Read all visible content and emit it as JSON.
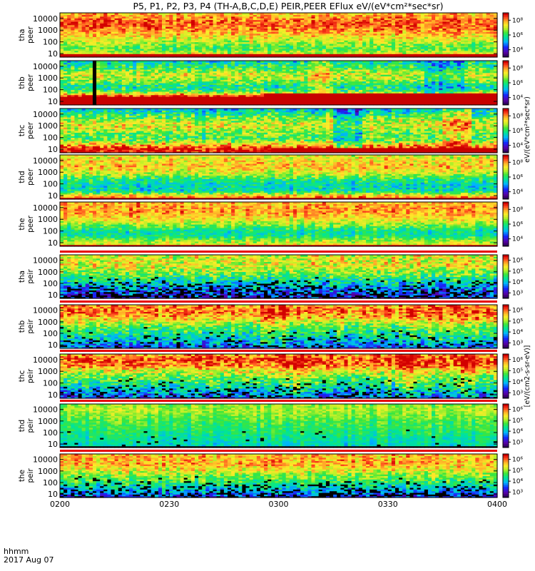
{
  "chart_data": {
    "type": "heatmap",
    "title": "P5, P1, P2, P3, P4 (TH-A,B,C,D,E) PEIR,PEER EFlux eV/(eV*cm²*sec*sr)",
    "x_axis": {
      "ticks": [
        "0200",
        "0230",
        "0300",
        "0330",
        "0400"
      ],
      "ticks_min": [
        0,
        30,
        60,
        90,
        120
      ],
      "range_min": [
        0,
        120
      ],
      "label_line1": "hhmm",
      "label_line2": "2017 Aug 07"
    },
    "y_axis": {
      "scale": "log",
      "range": [
        5,
        30000
      ],
      "ticks": [
        "10",
        "100",
        "1000",
        "10000"
      ]
    },
    "colorbar": {
      "scale": "log",
      "ticks_peer": [
        "10⁴",
        "10⁶",
        "10⁸"
      ],
      "ticks_peir": [
        "10³",
        "10⁴",
        "10⁵",
        "10⁶"
      ],
      "label_peer": "eV/(eV*cm²*sec*sr)",
      "label_peir": "[eV/(cm2-s-sr-eV)]"
    },
    "panels": [
      {
        "probe": "tha",
        "species": "peer",
        "label_line1": "tha",
        "label_line2": "peer",
        "low_cutoff_log": 0.95,
        "profile": [
          [
            0.6,
            0.78
          ],
          [
            1.1,
            0.68
          ],
          [
            1.45,
            0.55
          ],
          [
            1.75,
            0.6
          ],
          [
            2.3,
            0.72
          ],
          [
            3.0,
            0.85
          ],
          [
            3.6,
            0.92
          ],
          [
            4.4,
            0.8
          ]
        ],
        "variability": 0.22,
        "events": []
      },
      {
        "probe": "thb",
        "species": "peer",
        "label_line1": "thb",
        "label_line2": "peer",
        "low_cutoff_log": 1.4,
        "low_cutoff_late": 1.75,
        "late_from_min": 56,
        "profile": [
          [
            0.6,
            1.0
          ],
          [
            1.0,
            1.0
          ],
          [
            1.5,
            0.95
          ],
          [
            1.9,
            0.55
          ],
          [
            2.3,
            0.45
          ],
          [
            2.9,
            0.65
          ],
          [
            3.4,
            0.7
          ],
          [
            3.8,
            0.55
          ],
          [
            4.4,
            0.45
          ]
        ],
        "variability": 0.28,
        "gap_min": [
          8.5,
          9.5
        ],
        "events": [
          [
            68,
            74,
            0.12
          ],
          [
            100,
            110,
            -0.15
          ]
        ]
      },
      {
        "probe": "thc",
        "species": "peer",
        "label_line1": "thc",
        "label_line2": "peer",
        "low_cutoff_log": 0.75,
        "low_cutoff_late": 1.1,
        "late_from_min": 58,
        "profile": [
          [
            0.6,
            1.0
          ],
          [
            1.0,
            1.0
          ],
          [
            1.4,
            0.8
          ],
          [
            1.9,
            0.55
          ],
          [
            2.4,
            0.6
          ],
          [
            3.0,
            0.72
          ],
          [
            3.5,
            0.65
          ],
          [
            4.4,
            0.4
          ]
        ],
        "variability": 0.3,
        "events": [
          [
            75,
            82,
            -0.2
          ],
          [
            105,
            112,
            0.15
          ]
        ]
      },
      {
        "probe": "thd",
        "species": "peer",
        "label_line1": "thd",
        "label_line2": "peer",
        "low_cutoff_log": 0.85,
        "profile": [
          [
            0.6,
            0.92
          ],
          [
            1.0,
            0.82
          ],
          [
            1.4,
            0.45
          ],
          [
            1.9,
            0.42
          ],
          [
            2.4,
            0.5
          ],
          [
            2.9,
            0.68
          ],
          [
            3.5,
            0.8
          ],
          [
            4.4,
            0.72
          ]
        ],
        "variability": 0.24,
        "events": []
      },
      {
        "probe": "the",
        "species": "peer",
        "label_line1": "the",
        "label_line2": "peer",
        "low_cutoff_log": 0.82,
        "profile": [
          [
            0.6,
            0.75
          ],
          [
            1.1,
            0.68
          ],
          [
            1.6,
            0.48
          ],
          [
            2.0,
            0.45
          ],
          [
            2.5,
            0.6
          ],
          [
            3.0,
            0.74
          ],
          [
            3.6,
            0.85
          ],
          [
            4.4,
            0.82
          ]
        ],
        "variability": 0.2,
        "events": []
      },
      {
        "probe": "tha",
        "species": "peir",
        "label_line1": "tha",
        "label_line2": "peir",
        "low_cutoff_log": 0.7,
        "profile": [
          [
            0.6,
            0.15
          ],
          [
            1.0,
            0.22
          ],
          [
            1.5,
            0.3
          ],
          [
            2.0,
            0.4
          ],
          [
            2.5,
            0.5
          ],
          [
            3.0,
            0.62
          ],
          [
            3.6,
            0.72
          ],
          [
            4.4,
            0.7
          ]
        ],
        "variability": 0.3,
        "sparse": 0.25,
        "events": []
      },
      {
        "probe": "thb",
        "species": "peir",
        "label_line1": "thb",
        "label_line2": "peir",
        "low_cutoff_log": 0.7,
        "profile": [
          [
            0.6,
            0.25
          ],
          [
            1.0,
            0.3
          ],
          [
            1.5,
            0.4
          ],
          [
            2.0,
            0.48
          ],
          [
            2.5,
            0.55
          ],
          [
            3.0,
            0.68
          ],
          [
            3.5,
            0.82
          ],
          [
            4.0,
            0.88
          ],
          [
            4.4,
            0.85
          ]
        ],
        "variability": 0.28,
        "sparse": 0.1,
        "events": [
          [
            55,
            62,
            0.08
          ],
          [
            95,
            120,
            0.05
          ]
        ]
      },
      {
        "probe": "thc",
        "species": "peir",
        "label_line1": "thc",
        "label_line2": "peir",
        "low_cutoff_log": 0.7,
        "profile": [
          [
            0.6,
            0.22
          ],
          [
            1.0,
            0.3
          ],
          [
            1.5,
            0.4
          ],
          [
            2.0,
            0.5
          ],
          [
            2.6,
            0.6
          ],
          [
            3.1,
            0.72
          ],
          [
            3.6,
            0.88
          ],
          [
            4.0,
            0.92
          ],
          [
            4.4,
            0.85
          ]
        ],
        "variability": 0.3,
        "sparse": 0.15,
        "events": [
          [
            60,
            66,
            0.1
          ],
          [
            92,
            97,
            0.12
          ],
          [
            108,
            113,
            0.1
          ]
        ]
      },
      {
        "probe": "thd",
        "species": "peir",
        "label_line1": "thd",
        "label_line2": "peir",
        "low_cutoff_log": 0.85,
        "profile": [
          [
            0.6,
            0.4
          ],
          [
            1.0,
            0.42
          ],
          [
            1.5,
            0.45
          ],
          [
            2.0,
            0.5
          ],
          [
            2.5,
            0.52
          ],
          [
            3.0,
            0.55
          ],
          [
            3.5,
            0.6
          ],
          [
            4.0,
            0.65
          ],
          [
            4.4,
            0.62
          ]
        ],
        "variability": 0.14,
        "sparse": 0.02,
        "events": []
      },
      {
        "probe": "the",
        "species": "peir",
        "label_line1": "the",
        "label_line2": "peir",
        "low_cutoff_log": 0.7,
        "profile": [
          [
            0.6,
            0.2
          ],
          [
            1.0,
            0.28
          ],
          [
            1.5,
            0.4
          ],
          [
            2.0,
            0.5
          ],
          [
            2.6,
            0.62
          ],
          [
            3.1,
            0.72
          ],
          [
            3.6,
            0.82
          ],
          [
            4.4,
            0.8
          ]
        ],
        "variability": 0.24,
        "sparse": 0.2,
        "events": []
      }
    ]
  }
}
